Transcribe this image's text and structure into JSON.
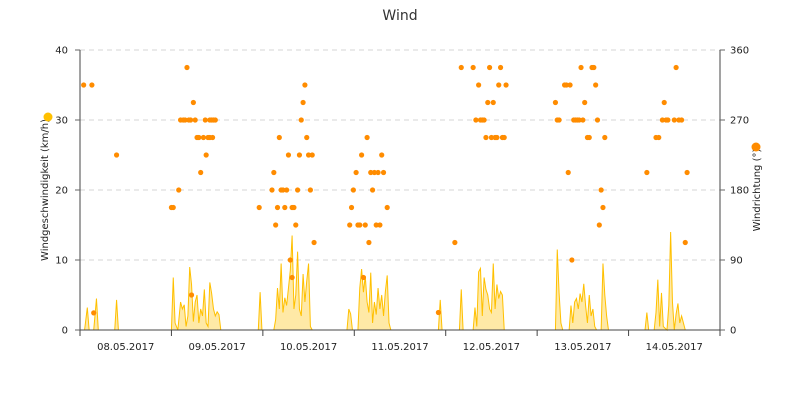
{
  "chart_data": {
    "type": "line",
    "title": "Wind",
    "xlabel": "",
    "x_tick_labels": [
      "08.05.2017",
      "09.05.2017",
      "10.05.2017",
      "11.05.2017",
      "12.05.2017",
      "13.05.2017",
      "14.05.2017"
    ],
    "y_left": {
      "label": "Windgeschwindigkeit (km/h)",
      "ticks": [
        "0",
        "10",
        "20",
        "30",
        "40"
      ],
      "range": [
        0,
        40
      ],
      "marker_color": "#ffc000"
    },
    "y_right": {
      "label": "Windrichtung (°)",
      "ticks": [
        "0",
        "90",
        "180",
        "270",
        "360"
      ],
      "range": [
        0,
        360
      ],
      "marker_color": "#ff8c00"
    },
    "x_range_days": [
      0,
      7
    ],
    "grid": "horizontal-dashed",
    "series": [
      {
        "kind": "area",
        "color": "#ffc000",
        "values": [
          [
            0.05,
            0
          ],
          [
            0.08,
            3.2
          ],
          [
            0.1,
            0
          ],
          [
            0.15,
            0
          ],
          [
            0.18,
            4.5
          ],
          [
            0.2,
            0
          ],
          [
            0.38,
            0
          ],
          [
            0.4,
            4.3
          ],
          [
            0.42,
            0
          ],
          [
            1.0,
            0
          ],
          [
            1.02,
            7.5
          ],
          [
            1.04,
            1
          ],
          [
            1.07,
            0
          ],
          [
            1.1,
            4
          ],
          [
            1.12,
            3
          ],
          [
            1.14,
            3.6
          ],
          [
            1.16,
            0.5
          ],
          [
            1.18,
            2
          ],
          [
            1.2,
            9
          ],
          [
            1.22,
            6.5
          ],
          [
            1.24,
            1.2
          ],
          [
            1.26,
            4
          ],
          [
            1.28,
            5
          ],
          [
            1.3,
            1
          ],
          [
            1.32,
            3
          ],
          [
            1.34,
            2
          ],
          [
            1.36,
            5.8
          ],
          [
            1.38,
            1
          ],
          [
            1.4,
            0.5
          ],
          [
            1.42,
            6.8
          ],
          [
            1.44,
            5.2
          ],
          [
            1.46,
            3
          ],
          [
            1.48,
            2
          ],
          [
            1.5,
            2.6
          ],
          [
            1.52,
            2.2
          ],
          [
            1.54,
            0
          ],
          [
            1.95,
            0
          ],
          [
            1.97,
            5.4
          ],
          [
            1.99,
            0
          ],
          [
            2.12,
            0
          ],
          [
            2.14,
            1.5
          ],
          [
            2.16,
            6
          ],
          [
            2.18,
            3
          ],
          [
            2.2,
            9.5
          ],
          [
            2.22,
            2.5
          ],
          [
            2.24,
            4.6
          ],
          [
            2.26,
            3.5
          ],
          [
            2.28,
            6
          ],
          [
            2.3,
            8.5
          ],
          [
            2.32,
            13.5
          ],
          [
            2.34,
            3
          ],
          [
            2.36,
            5
          ],
          [
            2.38,
            11.2
          ],
          [
            2.4,
            3
          ],
          [
            2.42,
            2
          ],
          [
            2.44,
            8
          ],
          [
            2.46,
            4
          ],
          [
            2.48,
            7
          ],
          [
            2.5,
            9.5
          ],
          [
            2.52,
            0.5
          ],
          [
            2.54,
            0
          ],
          [
            2.92,
            0
          ],
          [
            2.94,
            3
          ],
          [
            2.96,
            2.3
          ],
          [
            2.98,
            0
          ],
          [
            3.04,
            0
          ],
          [
            3.06,
            6
          ],
          [
            3.08,
            8.7
          ],
          [
            3.1,
            5.4
          ],
          [
            3.12,
            7.7
          ],
          [
            3.14,
            4
          ],
          [
            3.16,
            2.5
          ],
          [
            3.18,
            8.2
          ],
          [
            3.2,
            1
          ],
          [
            3.22,
            4
          ],
          [
            3.24,
            2.2
          ],
          [
            3.26,
            6
          ],
          [
            3.28,
            3
          ],
          [
            3.3,
            5
          ],
          [
            3.32,
            2
          ],
          [
            3.34,
            5.5
          ],
          [
            3.36,
            7.8
          ],
          [
            3.38,
            1
          ],
          [
            3.4,
            0
          ],
          [
            3.92,
            0
          ],
          [
            3.94,
            4.3
          ],
          [
            3.96,
            0
          ],
          [
            4.15,
            0
          ],
          [
            4.17,
            5.8
          ],
          [
            4.19,
            0
          ],
          [
            4.3,
            0
          ],
          [
            4.32,
            3.2
          ],
          [
            4.34,
            0.5
          ],
          [
            4.36,
            8.3
          ],
          [
            4.38,
            8.8
          ],
          [
            4.4,
            2
          ],
          [
            4.42,
            7.5
          ],
          [
            4.44,
            5.8
          ],
          [
            4.46,
            5
          ],
          [
            4.48,
            3
          ],
          [
            4.5,
            2.5
          ],
          [
            4.52,
            9.5
          ],
          [
            4.54,
            3
          ],
          [
            4.56,
            6.5
          ],
          [
            4.58,
            4.5
          ],
          [
            4.6,
            5.5
          ],
          [
            4.62,
            5
          ],
          [
            4.64,
            0
          ],
          [
            5.2,
            0
          ],
          [
            5.22,
            11.5
          ],
          [
            5.24,
            5.3
          ],
          [
            5.26,
            1
          ],
          [
            5.28,
            0
          ],
          [
            5.35,
            0
          ],
          [
            5.37,
            3.5
          ],
          [
            5.39,
            1
          ],
          [
            5.41,
            4
          ],
          [
            5.43,
            4.5
          ],
          [
            5.45,
            3
          ],
          [
            5.47,
            5.2
          ],
          [
            5.49,
            4
          ],
          [
            5.51,
            6.6
          ],
          [
            5.53,
            3.5
          ],
          [
            5.55,
            1
          ],
          [
            5.57,
            5
          ],
          [
            5.59,
            2
          ],
          [
            5.61,
            3
          ],
          [
            5.63,
            0.5
          ],
          [
            5.65,
            0
          ],
          [
            5.7,
            0
          ],
          [
            5.72,
            9.5
          ],
          [
            5.74,
            5
          ],
          [
            5.76,
            2
          ],
          [
            5.78,
            0
          ],
          [
            6.18,
            0
          ],
          [
            6.2,
            2.5
          ],
          [
            6.22,
            0
          ],
          [
            6.28,
            0
          ],
          [
            6.3,
            2.5
          ],
          [
            6.32,
            7.2
          ],
          [
            6.34,
            0.5
          ],
          [
            6.36,
            5.3
          ],
          [
            6.38,
            0.5
          ],
          [
            6.42,
            0
          ],
          [
            6.44,
            3.5
          ],
          [
            6.46,
            14
          ],
          [
            6.48,
            4
          ],
          [
            6.5,
            0
          ],
          [
            6.52,
            2.3
          ],
          [
            6.54,
            3.8
          ],
          [
            6.56,
            1
          ],
          [
            6.58,
            2
          ],
          [
            6.6,
            1
          ],
          [
            6.62,
            0
          ]
        ]
      },
      {
        "kind": "scatter",
        "color": "#ff8c00",
        "values": [
          [
            0.04,
            315
          ],
          [
            0.13,
            315
          ],
          [
            0.4,
            225
          ],
          [
            0.15,
            22
          ],
          [
            1.0,
            157.5
          ],
          [
            1.02,
            157.5
          ],
          [
            1.08,
            180
          ],
          [
            1.1,
            270
          ],
          [
            1.13,
            270
          ],
          [
            1.15,
            270
          ],
          [
            1.17,
            337.5
          ],
          [
            1.19,
            270
          ],
          [
            1.21,
            270
          ],
          [
            1.22,
            45
          ],
          [
            1.24,
            292.5
          ],
          [
            1.26,
            270
          ],
          [
            1.28,
            247.5
          ],
          [
            1.3,
            247.5
          ],
          [
            1.32,
            202.5
          ],
          [
            1.35,
            247.5
          ],
          [
            1.37,
            270
          ],
          [
            1.38,
            225
          ],
          [
            1.4,
            247.5
          ],
          [
            1.42,
            270
          ],
          [
            1.44,
            270
          ],
          [
            1.46,
            270
          ],
          [
            1.48,
            270
          ],
          [
            1.45,
            247.5
          ],
          [
            1.42,
            247.5
          ],
          [
            1.96,
            157.5
          ],
          [
            2.1,
            180
          ],
          [
            2.12,
            202.5
          ],
          [
            2.14,
            135
          ],
          [
            2.16,
            157.5
          ],
          [
            2.18,
            247.5
          ],
          [
            2.2,
            180
          ],
          [
            2.22,
            180
          ],
          [
            2.24,
            157.5
          ],
          [
            2.26,
            180
          ],
          [
            2.28,
            225
          ],
          [
            2.3,
            90
          ],
          [
            2.32,
            157.5
          ],
          [
            2.34,
            157.5
          ],
          [
            2.36,
            135
          ],
          [
            2.38,
            180
          ],
          [
            2.32,
            67.5
          ],
          [
            2.4,
            225
          ],
          [
            2.42,
            270
          ],
          [
            2.44,
            292.5
          ],
          [
            2.46,
            315
          ],
          [
            2.48,
            247.5
          ],
          [
            2.5,
            225
          ],
          [
            2.52,
            180
          ],
          [
            2.54,
            225
          ],
          [
            2.56,
            112.5
          ],
          [
            2.95,
            135
          ],
          [
            2.97,
            157.5
          ],
          [
            2.99,
            180
          ],
          [
            3.02,
            202.5
          ],
          [
            3.04,
            135
          ],
          [
            3.06,
            135
          ],
          [
            3.08,
            225
          ],
          [
            3.1,
            67.5
          ],
          [
            3.12,
            135
          ],
          [
            3.14,
            247.5
          ],
          [
            3.16,
            112.5
          ],
          [
            3.18,
            202.5
          ],
          [
            3.2,
            180
          ],
          [
            3.22,
            202.5
          ],
          [
            3.24,
            135
          ],
          [
            3.26,
            202.5
          ],
          [
            3.28,
            135
          ],
          [
            3.3,
            225
          ],
          [
            3.32,
            202.5
          ],
          [
            3.36,
            157.5
          ],
          [
            3.92,
            22.5
          ],
          [
            4.1,
            112.5
          ],
          [
            4.17,
            337.5
          ],
          [
            4.3,
            337.5
          ],
          [
            4.33,
            270
          ],
          [
            4.36,
            315
          ],
          [
            4.38,
            270
          ],
          [
            4.4,
            270
          ],
          [
            4.42,
            270
          ],
          [
            4.44,
            247.5
          ],
          [
            4.46,
            292.5
          ],
          [
            4.48,
            337.5
          ],
          [
            4.5,
            247.5
          ],
          [
            4.52,
            292.5
          ],
          [
            4.54,
            247.5
          ],
          [
            4.56,
            247.5
          ],
          [
            4.58,
            315
          ],
          [
            4.6,
            337.5
          ],
          [
            4.62,
            247.5
          ],
          [
            4.64,
            247.5
          ],
          [
            4.66,
            315
          ],
          [
            5.2,
            292.5
          ],
          [
            5.22,
            270
          ],
          [
            5.24,
            270
          ],
          [
            5.3,
            315
          ],
          [
            5.32,
            315
          ],
          [
            5.34,
            202.5
          ],
          [
            5.36,
            315
          ],
          [
            5.38,
            90
          ],
          [
            5.4,
            270
          ],
          [
            5.42,
            270
          ],
          [
            5.44,
            270
          ],
          [
            5.46,
            270
          ],
          [
            5.48,
            337.5
          ],
          [
            5.5,
            270
          ],
          [
            5.52,
            292.5
          ],
          [
            5.55,
            247.5
          ],
          [
            5.57,
            247.5
          ],
          [
            5.6,
            337.5
          ],
          [
            5.62,
            337.5
          ],
          [
            5.64,
            315
          ],
          [
            5.66,
            270
          ],
          [
            5.68,
            135
          ],
          [
            5.7,
            180
          ],
          [
            5.72,
            157.5
          ],
          [
            5.74,
            247.5
          ],
          [
            6.2,
            202.5
          ],
          [
            6.3,
            247.5
          ],
          [
            6.33,
            247.5
          ],
          [
            6.37,
            270
          ],
          [
            6.39,
            292.5
          ],
          [
            6.41,
            270
          ],
          [
            6.43,
            270
          ],
          [
            6.5,
            270
          ],
          [
            6.52,
            337.5
          ],
          [
            6.55,
            270
          ],
          [
            6.58,
            270
          ],
          [
            6.62,
            112.5
          ],
          [
            6.64,
            202.5
          ]
        ]
      }
    ]
  }
}
